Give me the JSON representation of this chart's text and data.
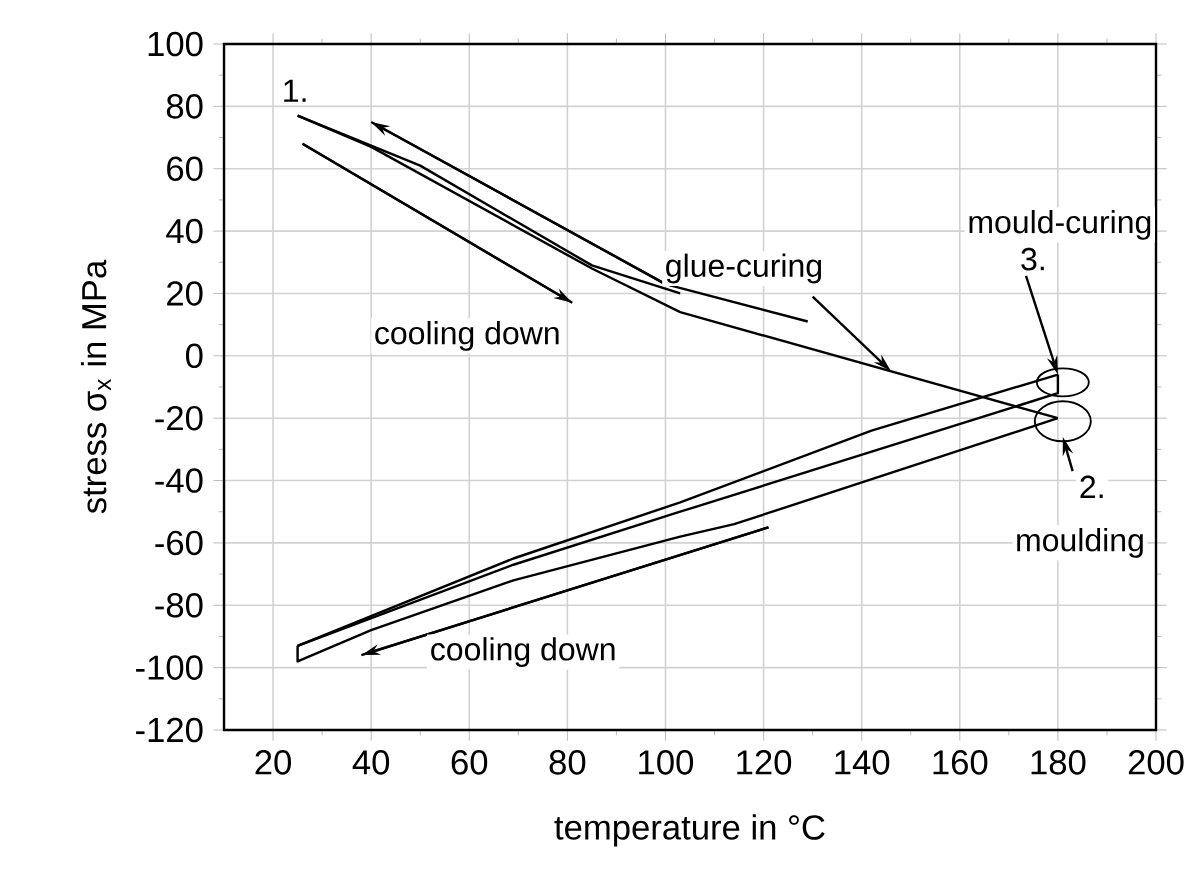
{
  "chart_data": {
    "type": "line",
    "xlabel": "temperature in °C",
    "ylabel": "stress σ$_{x}$ in MPa",
    "xlim": [
      10,
      200
    ],
    "xticks": [
      20,
      40,
      60,
      80,
      100,
      120,
      140,
      160,
      180,
      200
    ],
    "ylim": [
      -120,
      100
    ],
    "yticks": [
      -120,
      -100,
      -80,
      -60,
      -40,
      -20,
      0,
      20,
      40,
      60,
      80,
      100
    ],
    "grid": true,
    "series": [
      {
        "color": "#000000",
        "x": [
          25,
          40,
          85,
          103,
          180
        ],
        "values": [
          77,
          67,
          28,
          14,
          -20
        ]
      },
      {
        "color": "#000000",
        "x": [
          25,
          50,
          85,
          103
        ],
        "values": [
          77,
          61,
          29,
          20
        ]
      },
      {
        "color": "#000000",
        "x": [
          180,
          142,
          103,
          69,
          25
        ],
        "values": [
          -6,
          -24,
          -47,
          -65,
          -93
        ]
      },
      {
        "color": "#000000",
        "x": [
          180,
          180,
          103,
          69,
          25
        ],
        "values": [
          -6,
          -12,
          -50,
          -67,
          -93
        ]
      },
      {
        "color": "#000000",
        "x": [
          25,
          25,
          40,
          69,
          103,
          114,
          180
        ],
        "values": [
          -93,
          -98,
          -88,
          -72,
          -58,
          -54,
          -20
        ]
      },
      {
        "color": "#000000",
        "x": [
          129,
          100,
          40
        ],
        "values": [
          11,
          23,
          75
        ]
      },
      {
        "color": "#000000",
        "x": [
          26,
          81
        ],
        "values": [
          68,
          17
        ]
      },
      {
        "color": "#000000",
        "x": [
          121,
          38
        ],
        "values": [
          -55,
          -96
        ]
      }
    ],
    "annotations": [
      "1.",
      "cooling down",
      {
        "text": "glue-curing",
        "x": 146,
        "y": -5
      },
      "mould-curing",
      {
        "text": "3.",
        "x": 180,
        "y": -6
      },
      "2.",
      "moulding",
      "cooling down"
    ]
  }
}
